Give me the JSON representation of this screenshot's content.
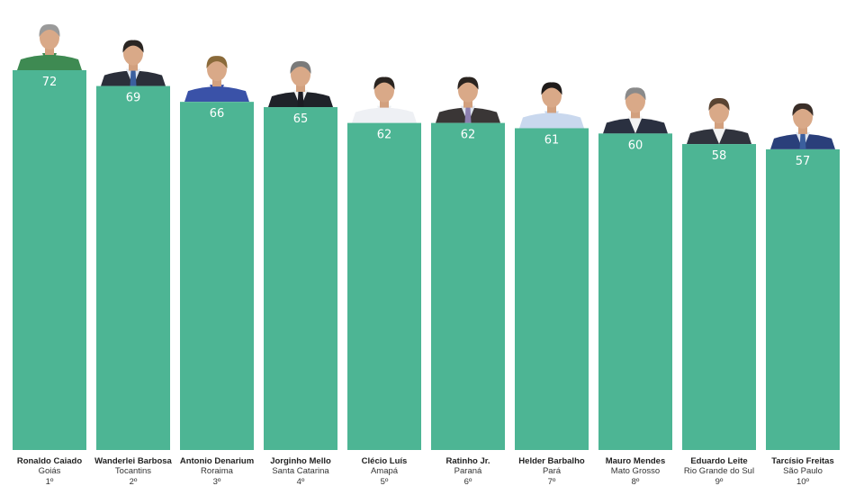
{
  "chart_data": {
    "type": "bar",
    "bar_color": "#4db594",
    "ylim": [
      0,
      72
    ],
    "grid": false,
    "legend": "none",
    "categories": [
      {
        "name": "Ronaldo Caiado",
        "state": "Goiás",
        "rank": "1º",
        "value": 72,
        "portrait": {
          "suit": "#3e8a52",
          "shirt": "#3e8a52",
          "tie": null,
          "hair": "#9a9a9a"
        }
      },
      {
        "name": "Wanderlei Barbosa",
        "state": "Tocantins",
        "rank": "2º",
        "value": 69,
        "portrait": {
          "suit": "#2b2f3a",
          "shirt": "#dfe6f0",
          "tie": "#3b5f9e",
          "hair": "#2a2522"
        }
      },
      {
        "name": "Antonio Denarium",
        "state": "Roraima",
        "rank": "3º",
        "value": 66,
        "portrait": {
          "suit": "#3a52a8",
          "shirt": "#3a52a8",
          "tie": null,
          "hair": "#8a6a3a"
        }
      },
      {
        "name": "Jorginho Mello",
        "state": "Santa Catarina",
        "rank": "4º",
        "value": 65,
        "portrait": {
          "suit": "#1f2229",
          "shirt": "#f2f2f2",
          "tie": "#1c1c24",
          "hair": "#7a7a7a"
        }
      },
      {
        "name": "Clécio Luís",
        "state": "Amapá",
        "rank": "5º",
        "value": 62,
        "portrait": {
          "suit": "#eef0f4",
          "shirt": "#eef0f4",
          "tie": null,
          "hair": "#2a2420"
        }
      },
      {
        "name": "Ratinho Jr.",
        "state": "Paraná",
        "rank": "6º",
        "value": 62,
        "portrait": {
          "suit": "#3a3636",
          "shirt": "#dde3ec",
          "tie": "#8c7fb0",
          "hair": "#2a2420"
        }
      },
      {
        "name": "Helder Barbalho",
        "state": "Pará",
        "rank": "7º",
        "value": 61,
        "portrait": {
          "suit": "#c9d8ee",
          "shirt": "#c9d8ee",
          "tie": null,
          "hair": "#1f1b1a"
        }
      },
      {
        "name": "Mauro Mendes",
        "state": "Mato Grosso",
        "rank": "8º",
        "value": 60,
        "portrait": {
          "suit": "#2a3040",
          "shirt": "#f2f2f2",
          "tie": null,
          "hair": "#8a8a8a"
        }
      },
      {
        "name": "Eduardo Leite",
        "state": "Rio Grande do Sul",
        "rank": "9º",
        "value": 58,
        "portrait": {
          "suit": "#30333d",
          "shirt": "#f2f2f2",
          "tie": null,
          "hair": "#5a4432"
        }
      },
      {
        "name": "Tarcísio Freitas",
        "state": "São Paulo",
        "rank": "10º",
        "value": 57,
        "portrait": {
          "suit": "#2a3f7a",
          "shirt": "#dfe6f0",
          "tie": "#3b5f9e",
          "hair": "#3a2e28"
        }
      }
    ]
  }
}
